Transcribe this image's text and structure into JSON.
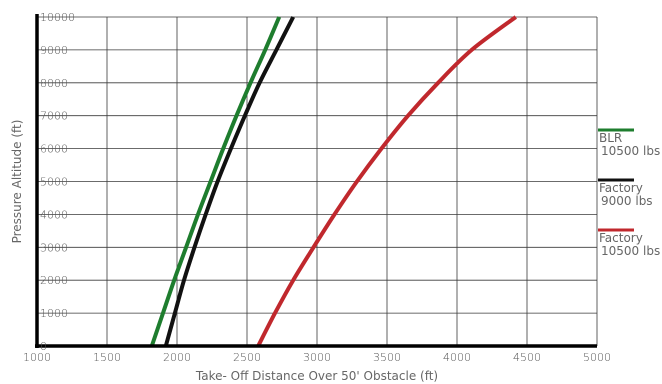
{
  "chart_data": {
    "type": "line",
    "title": "",
    "xlabel": "Take- Off Distance Over 50' Obstacle (ft)",
    "ylabel": "Pressure Altitude (ft)",
    "xlim": [
      1000,
      5000
    ],
    "ylim": [
      0,
      10000
    ],
    "x_ticks": [
      "1000",
      "1500",
      "2000",
      "2500",
      "3000",
      "3500",
      "4000",
      "4500",
      "5000"
    ],
    "y_ticks": [
      "0",
      "1000",
      "2000",
      "3000",
      "4000",
      "5000",
      "6000",
      "7000",
      "8000",
      "9000",
      "10000"
    ],
    "grid": true,
    "legend_position": "right",
    "series": [
      {
        "name": "BLR 10500 lbs",
        "legend_lines": [
          "BLR",
          "10500 lbs"
        ],
        "color": "#1e7d2e",
        "points": [
          [
            1820,
            0
          ],
          [
            1900,
            1000
          ],
          [
            1980,
            2000
          ],
          [
            2065,
            3000
          ],
          [
            2150,
            4000
          ],
          [
            2240,
            5000
          ],
          [
            2330,
            6000
          ],
          [
            2425,
            7000
          ],
          [
            2525,
            8000
          ],
          [
            2630,
            9000
          ],
          [
            2730,
            10000
          ]
        ]
      },
      {
        "name": "Factory 9000 lbs",
        "legend_lines": [
          "Factory",
          "9000 lbs"
        ],
        "color": "#111111",
        "points": [
          [
            1920,
            0
          ],
          [
            1985,
            1000
          ],
          [
            2050,
            2000
          ],
          [
            2125,
            3000
          ],
          [
            2205,
            4000
          ],
          [
            2290,
            5000
          ],
          [
            2385,
            6000
          ],
          [
            2485,
            7000
          ],
          [
            2590,
            8000
          ],
          [
            2710,
            9000
          ],
          [
            2830,
            10000
          ]
        ]
      },
      {
        "name": "Factory 10500 lbs",
        "legend_lines": [
          "Factory",
          "10500 lbs"
        ],
        "color": "#c0282d",
        "points": [
          [
            2580,
            0
          ],
          [
            2700,
            1000
          ],
          [
            2830,
            2000
          ],
          [
            2975,
            3000
          ],
          [
            3125,
            4000
          ],
          [
            3285,
            5000
          ],
          [
            3460,
            6000
          ],
          [
            3650,
            7000
          ],
          [
            3865,
            8000
          ],
          [
            4105,
            9000
          ],
          [
            4420,
            10000
          ]
        ]
      }
    ]
  }
}
